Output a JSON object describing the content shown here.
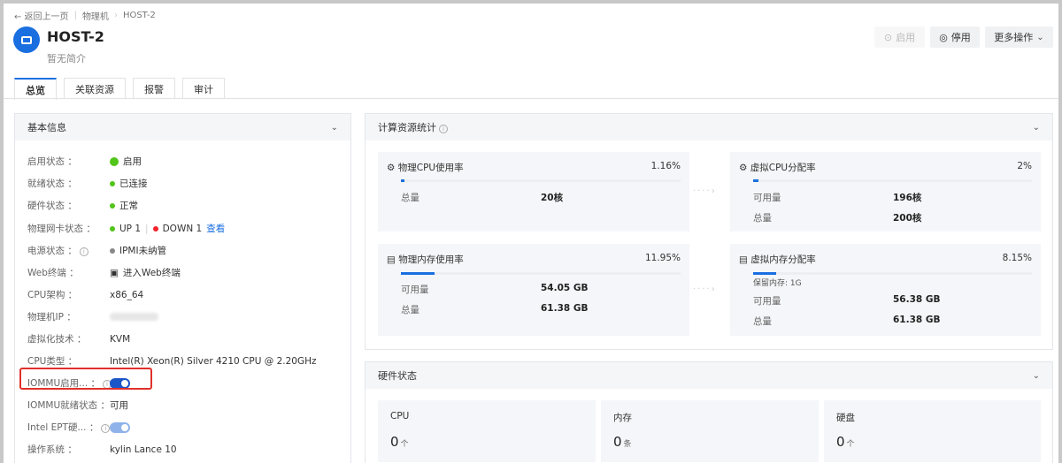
{
  "breadcrumb": {
    "back": "← 返回上一页",
    "parent": "物理机",
    "current": "HOST-2"
  },
  "header": {
    "title": "HOST-2",
    "description": "暂无简介",
    "actions": {
      "enable": "启用",
      "disable": "停用",
      "more": "更多操作"
    }
  },
  "tabs": [
    {
      "label": "总览",
      "active": true
    },
    {
      "label": "关联资源"
    },
    {
      "label": "报警"
    },
    {
      "label": "审计"
    }
  ],
  "basic_info": {
    "title": "基本信息",
    "rows": [
      {
        "label": "启用状态 ：",
        "value": "启用"
      },
      {
        "label": "就绪状态 ：",
        "value": "已连接"
      },
      {
        "label": "硬件状态 ：",
        "value": "正常"
      },
      {
        "label": "物理网卡状态 ：",
        "up": "UP 1",
        "down": "DOWN 1",
        "link": "查看"
      },
      {
        "label": "电源状态 ：",
        "value": "IPMI未纳管"
      },
      {
        "label": "Web终端 ：",
        "value": "进入Web终端"
      },
      {
        "label": "CPU架构 ：",
        "value": "x86_64"
      },
      {
        "label": "物理机IP ：",
        "value": ""
      },
      {
        "label": "虚拟化技术 ：",
        "value": "KVM"
      },
      {
        "label": "CPU类型 ：",
        "value": "Intel(R) Xeon(R) Silver 4210 CPU @ 2.20GHz"
      },
      {
        "label": "IOMMU启用... ：",
        "value": "on"
      },
      {
        "label": "IOMMU就绪状态 ：",
        "value": "可用"
      },
      {
        "label": "Intel EPT硬... ：",
        "value": "on"
      },
      {
        "label": "操作系统 ：",
        "value": "kylin Lance 10"
      }
    ]
  },
  "compute": {
    "title": "计算资源统计",
    "phys_cpu": {
      "title": "物理CPU使用率",
      "percent": "1.16%",
      "fill": 1.16,
      "total_label": "总量",
      "total": "20核"
    },
    "virt_cpu": {
      "title": "虚拟CPU分配率",
      "percent": "2%",
      "fill": 2,
      "avail_label": "可用量",
      "avail": "196核",
      "total_label": "总量",
      "total": "200核"
    },
    "phys_mem": {
      "title": "物理内存使用率",
      "percent": "11.95%",
      "fill": 11.95,
      "avail_label": "可用量",
      "avail": "54.05 GB",
      "total_label": "总量",
      "total": "61.38 GB"
    },
    "virt_mem": {
      "title": "虚拟内存分配率",
      "percent": "8.15%",
      "fill": 8.15,
      "reserved": "保留内存: 1G",
      "avail_label": "可用量",
      "avail": "56.38 GB",
      "total_label": "总量",
      "total": "61.38 GB"
    }
  },
  "hardware": {
    "title": "硬件状态",
    "items": [
      {
        "name": "CPU",
        "count": "0",
        "unit": "个"
      },
      {
        "name": "内存",
        "count": "0",
        "unit": "条"
      },
      {
        "name": "硬盘",
        "count": "0",
        "unit": "个"
      }
    ]
  },
  "colors": {
    "accent": "#1a6fe0",
    "ok": "#52c41a",
    "error": "#f5222d",
    "highlight": "#e0302a"
  }
}
